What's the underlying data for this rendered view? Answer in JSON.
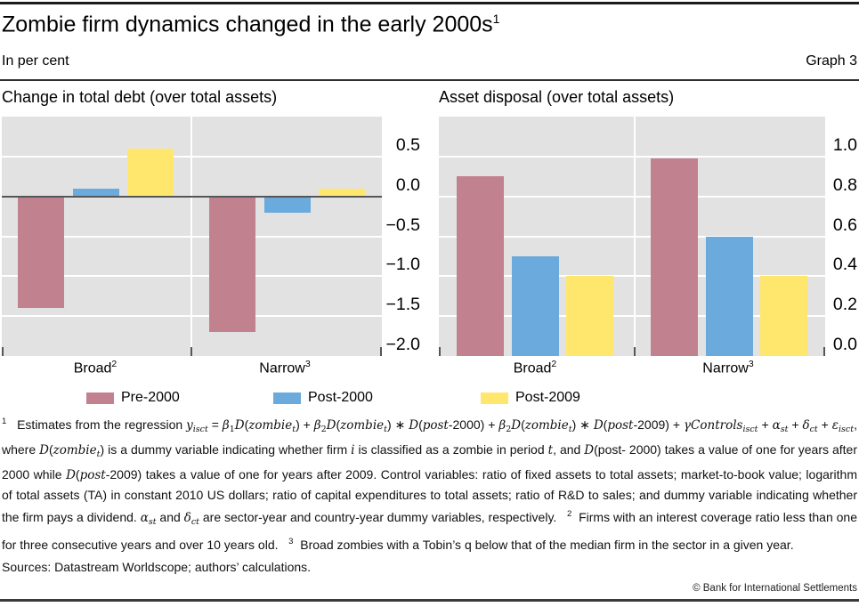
{
  "header": {
    "title": "Zombie firm dynamics changed in the early 2000s",
    "title_sup": "1",
    "subtitle_left": "In per cent",
    "subtitle_right": "Graph 3"
  },
  "colors": {
    "pre2000": "#c2818f",
    "post2000": "#6aaadc",
    "post2009": "#ffe76e",
    "plot_bg": "#e2e2e2",
    "grid": "#ffffff",
    "zero_line": "#55565a"
  },
  "legend": [
    {
      "label": "Pre-2000",
      "color": "#c2818f"
    },
    {
      "label": "Post-2000",
      "color": "#6aaadc"
    },
    {
      "label": "Post-2009",
      "color": "#ffe76e"
    }
  ],
  "chart_data": [
    {
      "type": "bar",
      "title": "Change in total debt (over total assets)",
      "categories": [
        "Broad",
        "Narrow"
      ],
      "category_sups": [
        "2",
        "3"
      ],
      "series": [
        {
          "name": "Pre-2000",
          "values": [
            -1.4,
            -1.7
          ]
        },
        {
          "name": "Post-2000",
          "values": [
            0.1,
            -0.2
          ]
        },
        {
          "name": "Post-2009",
          "values": [
            0.6,
            0.1
          ]
        }
      ],
      "ylim": [
        -2.0,
        1.0
      ],
      "yticks": [
        0.5,
        0.0,
        -0.5,
        -1.0,
        -1.5,
        -2.0
      ],
      "ytick_labels": [
        "0.5",
        "0.0",
        "−0.5",
        "−1.0",
        "−1.5",
        "−2.0"
      ],
      "grid": "horizontal every 0.5, white on grey",
      "legend_position": "bottom"
    },
    {
      "type": "bar",
      "title": "Asset disposal (over total assets)",
      "categories": [
        "Broad",
        "Narrow"
      ],
      "category_sups": [
        "2",
        "3"
      ],
      "series": [
        {
          "name": "Pre-2000",
          "values": [
            0.9,
            0.99
          ]
        },
        {
          "name": "Post-2000",
          "values": [
            0.5,
            0.6
          ]
        },
        {
          "name": "Post-2009",
          "values": [
            0.4,
            0.4
          ]
        }
      ],
      "ylim": [
        0.0,
        1.2
      ],
      "yticks": [
        1.0,
        0.8,
        0.6,
        0.4,
        0.2,
        0.0
      ],
      "ytick_labels": [
        "1.0",
        "0.8",
        "0.6",
        "0.4",
        "0.2",
        "0.0"
      ],
      "grid": "horizontal every 0.2, white on grey",
      "legend_position": "bottom"
    }
  ],
  "footnote": {
    "segments": [
      [
        "p",
        "1"
      ],
      [
        "n",
        "   Estimates from the regression "
      ],
      [
        "i",
        "y"
      ],
      [
        "s",
        "isct"
      ],
      [
        "n",
        " = "
      ],
      [
        "i",
        "β"
      ],
      [
        "b",
        "1"
      ],
      [
        "i",
        "D"
      ],
      [
        "n",
        "("
      ],
      [
        "i",
        "zombie"
      ],
      [
        "s",
        "t"
      ],
      [
        "n",
        ") + "
      ],
      [
        "i",
        "β"
      ],
      [
        "b",
        "2"
      ],
      [
        "i",
        "D"
      ],
      [
        "n",
        "("
      ],
      [
        "i",
        "zombie"
      ],
      [
        "s",
        "t"
      ],
      [
        "n",
        ") ∗ "
      ],
      [
        "i",
        "D"
      ],
      [
        "n",
        "("
      ],
      [
        "i",
        "post"
      ],
      [
        "n",
        "-2000) + "
      ],
      [
        "i",
        "β"
      ],
      [
        "b",
        "2"
      ],
      [
        "i",
        "D"
      ],
      [
        "n",
        "("
      ],
      [
        "i",
        "zombie"
      ],
      [
        "s",
        "t"
      ],
      [
        "n",
        ") ∗ "
      ],
      [
        "i",
        "D"
      ],
      [
        "n",
        "("
      ],
      [
        "i",
        "post"
      ],
      [
        "n",
        "-2009) + "
      ],
      [
        "i",
        "γControls"
      ],
      [
        "s",
        "isct"
      ],
      [
        "n",
        " + "
      ],
      [
        "i",
        "α"
      ],
      [
        "s",
        "st"
      ],
      [
        "n",
        " + "
      ],
      [
        "i",
        "δ"
      ],
      [
        "s",
        "ct"
      ],
      [
        "n",
        " + "
      ],
      [
        "i",
        "ε"
      ],
      [
        "s",
        "isct"
      ],
      [
        "n",
        ", where "
      ],
      [
        "i",
        "D"
      ],
      [
        "n",
        "("
      ],
      [
        "i",
        "zombie"
      ],
      [
        "s",
        "t"
      ],
      [
        "n",
        ") is a dummy variable indicating whether firm "
      ],
      [
        "i",
        "i"
      ],
      [
        "n",
        " is classified as a zombie in period "
      ],
      [
        "i",
        "t"
      ],
      [
        "n",
        ", and "
      ],
      [
        "i",
        "D"
      ],
      [
        "n",
        "(post- 2000) takes a value of one for years after 2000 while "
      ],
      [
        "i",
        "D"
      ],
      [
        "n",
        "("
      ],
      [
        "i",
        "post"
      ],
      [
        "n",
        "-2009) takes a value of one for years after 2009. Control variables: ratio of fixed assets to total assets; market-to-book value; logarithm of total assets (TA) in constant 2010 US dollars; ratio of capital expenditures to total assets; ratio of R&D to sales; and dummy variable indicating whether the firm pays a dividend. "
      ],
      [
        "i",
        "α"
      ],
      [
        "s",
        "st"
      ],
      [
        "n",
        " and "
      ],
      [
        "i",
        "δ"
      ],
      [
        "s",
        "ct"
      ],
      [
        "n",
        " are sector-year and country-year dummy variables, respectively.   "
      ],
      [
        "p",
        "2"
      ],
      [
        "n",
        "  Firms with an interest coverage ratio less than one for three consecutive years and over 10 years old.   "
      ],
      [
        "p",
        "3"
      ],
      [
        "n",
        "  Broad zombies with a Tobin’s q below that of the median firm in the sector in a given year."
      ]
    ]
  },
  "sources": "Sources: Datastream Worldscope; authors’ calculations.",
  "copyright": "© Bank for International Settlements"
}
